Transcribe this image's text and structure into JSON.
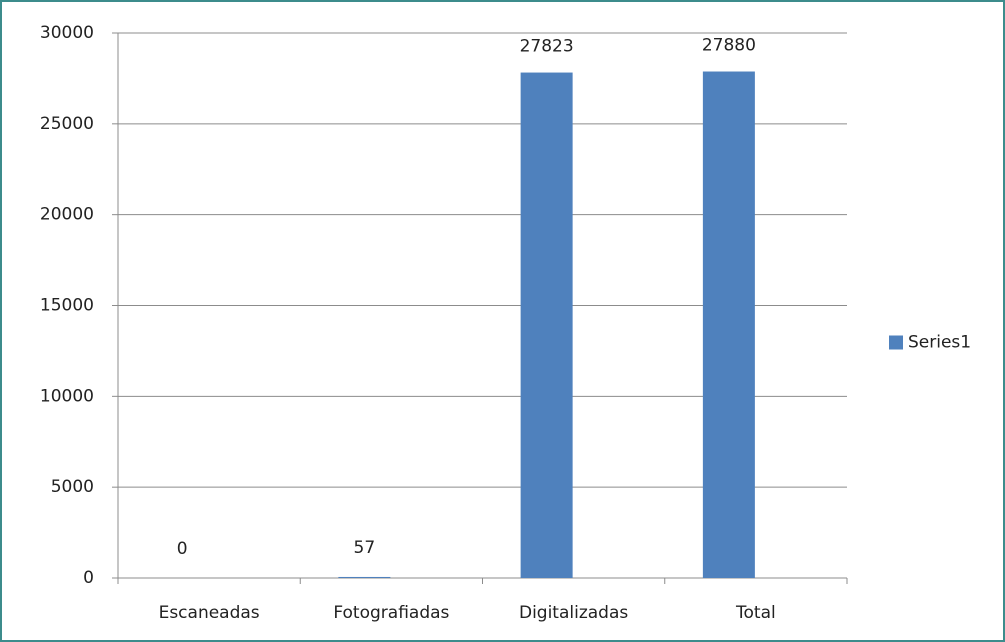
{
  "chart_data": {
    "type": "bar",
    "categories": [
      "Escaneadas",
      "Fotografiadas",
      "Digitalizadas",
      "Total"
    ],
    "series": [
      {
        "name": "Series1",
        "color": "#4f81bd",
        "values": [
          0,
          57,
          27823,
          27880
        ]
      }
    ],
    "ylim": [
      0,
      30000
    ],
    "yticks": [
      0,
      5000,
      10000,
      15000,
      20000,
      25000,
      30000
    ],
    "grid": true,
    "legend": "right",
    "data_labels": true
  }
}
